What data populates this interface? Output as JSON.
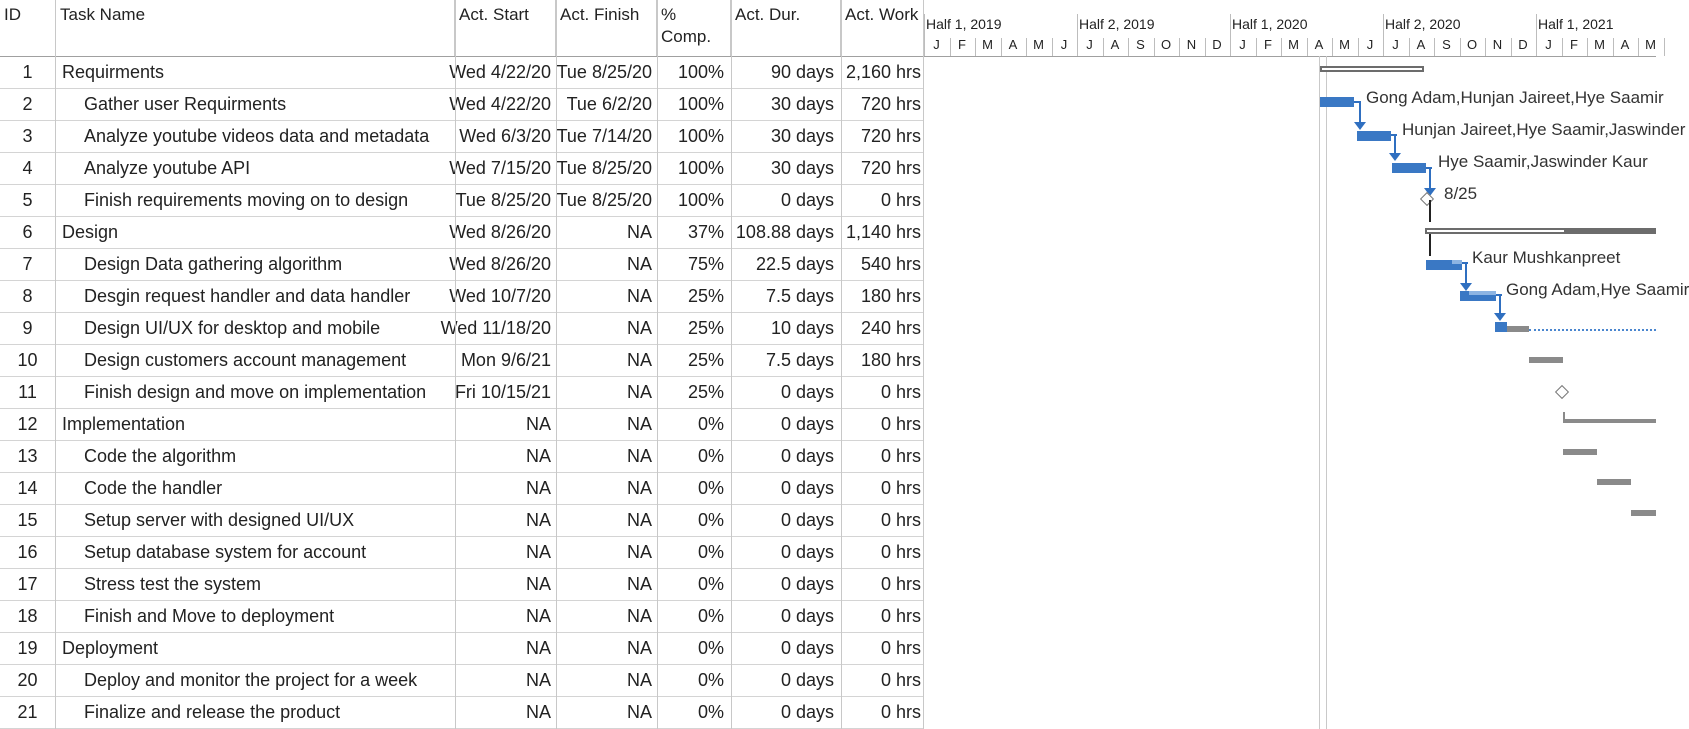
{
  "columns": {
    "id": "ID",
    "name": "Task Name",
    "start": "Act. Start",
    "finish": "Act. Finish",
    "comp": "% Comp.",
    "dur": "Act. Dur.",
    "work": "Act. Work"
  },
  "timescale": {
    "halves": [
      "Half 1, 2019",
      "Half 2, 2019",
      "Half 1, 2020",
      "Half 2, 2020",
      "Half 1, 2021"
    ],
    "months": [
      "J",
      "F",
      "M",
      "A",
      "M",
      "J",
      "J",
      "A",
      "S",
      "O",
      "N",
      "D",
      "J",
      "F",
      "M",
      "A",
      "M",
      "J",
      "J",
      "A",
      "S",
      "O",
      "N",
      "D",
      "J",
      "F",
      "M",
      "A",
      "M"
    ]
  },
  "tasks": [
    {
      "id": "1",
      "name": "Requirments",
      "start": "Wed 4/22/20",
      "finish": "Tue 8/25/20",
      "comp": "100%",
      "dur": "90 days",
      "work": "2,160 hrs",
      "summary": true
    },
    {
      "id": "2",
      "name": "Gather user Requirments",
      "start": "Wed 4/22/20",
      "finish": "Tue 6/2/20",
      "comp": "100%",
      "dur": "30 days",
      "work": "720 hrs",
      "summary": false
    },
    {
      "id": "3",
      "name": "Analyze youtube videos data and metadata",
      "start": "Wed 6/3/20",
      "finish": "Tue 7/14/20",
      "comp": "100%",
      "dur": "30 days",
      "work": "720 hrs",
      "summary": false
    },
    {
      "id": "4",
      "name": "Analyze youtube API",
      "start": "Wed 7/15/20",
      "finish": "Tue 8/25/20",
      "comp": "100%",
      "dur": "30 days",
      "work": "720 hrs",
      "summary": false
    },
    {
      "id": "5",
      "name": "Finish requirements moving on to design",
      "start": "Tue 8/25/20",
      "finish": "Tue 8/25/20",
      "comp": "100%",
      "dur": "0 days",
      "work": "0 hrs",
      "summary": false
    },
    {
      "id": "6",
      "name": "Design",
      "start": "Wed 8/26/20",
      "finish": "NA",
      "comp": "37%",
      "dur": "108.88 days",
      "work": "1,140 hrs",
      "summary": true
    },
    {
      "id": "7",
      "name": "Design Data gathering algorithm",
      "start": "Wed 8/26/20",
      "finish": "NA",
      "comp": "75%",
      "dur": "22.5 days",
      "work": "540 hrs",
      "summary": false
    },
    {
      "id": "8",
      "name": "Desgin request handler and data handler",
      "start": "Wed 10/7/20",
      "finish": "NA",
      "comp": "25%",
      "dur": "7.5 days",
      "work": "180 hrs",
      "summary": false
    },
    {
      "id": "9",
      "name": "Design UI/UX for desktop and mobile",
      "start": "Wed 11/18/20",
      "finish": "NA",
      "comp": "25%",
      "dur": "10 days",
      "work": "240 hrs",
      "summary": false
    },
    {
      "id": "10",
      "name": "Design customers account management",
      "start": "Mon 9/6/21",
      "finish": "NA",
      "comp": "25%",
      "dur": "7.5 days",
      "work": "180 hrs",
      "summary": false
    },
    {
      "id": "11",
      "name": "Finish design and move on implementation",
      "start": "Fri 10/15/21",
      "finish": "NA",
      "comp": "25%",
      "dur": "0 days",
      "work": "0 hrs",
      "summary": false
    },
    {
      "id": "12",
      "name": "Implementation",
      "start": "NA",
      "finish": "NA",
      "comp": "0%",
      "dur": "0 days",
      "work": "0 hrs",
      "summary": true
    },
    {
      "id": "13",
      "name": "Code the algorithm",
      "start": "NA",
      "finish": "NA",
      "comp": "0%",
      "dur": "0 days",
      "work": "0 hrs",
      "summary": false
    },
    {
      "id": "14",
      "name": "Code the handler",
      "start": "NA",
      "finish": "NA",
      "comp": "0%",
      "dur": "0 days",
      "work": "0 hrs",
      "summary": false
    },
    {
      "id": "15",
      "name": "Setup server with designed UI/UX",
      "start": "NA",
      "finish": "NA",
      "comp": "0%",
      "dur": "0 days",
      "work": "0 hrs",
      "summary": false
    },
    {
      "id": "16",
      "name": "Setup database system for account",
      "start": "NA",
      "finish": "NA",
      "comp": "0%",
      "dur": "0 days",
      "work": "0 hrs",
      "summary": false
    },
    {
      "id": "17",
      "name": "Stress test the system",
      "start": "NA",
      "finish": "NA",
      "comp": "0%",
      "dur": "0 days",
      "work": "0 hrs",
      "summary": false
    },
    {
      "id": "18",
      "name": "Finish and Move to deployment",
      "start": "NA",
      "finish": "NA",
      "comp": "0%",
      "dur": "0 days",
      "work": "0 hrs",
      "summary": false
    },
    {
      "id": "19",
      "name": "Deployment",
      "start": "NA",
      "finish": "NA",
      "comp": "0%",
      "dur": "0 days",
      "work": "0 hrs",
      "summary": true
    },
    {
      "id": "20",
      "name": "Deploy and monitor the project for a week",
      "start": "NA",
      "finish": "NA",
      "comp": "0%",
      "dur": "0 days",
      "work": "0 hrs",
      "summary": false
    },
    {
      "id": "21",
      "name": "Finalize and release the product",
      "start": "NA",
      "finish": "NA",
      "comp": "0%",
      "dur": "0 days",
      "work": "0 hrs",
      "summary": false
    }
  ],
  "gantt_labels": {
    "r2": "Gong Adam,Hunjan Jaireet,Hye Saamir",
    "r3": "Hunjan Jaireet,Hye Saamir,Jaswinder",
    "r4": "Hye Saamir,Jaswinder Kaur",
    "r5": "8/25",
    "r7": "Kaur Mushkanpreet",
    "r8": "Gong Adam,Hye Saamir"
  },
  "colors": {
    "task_bar": "#3a78c4",
    "task_progress": "#8db4e2",
    "summary_bar": "#6c6c6c",
    "link": "#2f6fc0"
  }
}
